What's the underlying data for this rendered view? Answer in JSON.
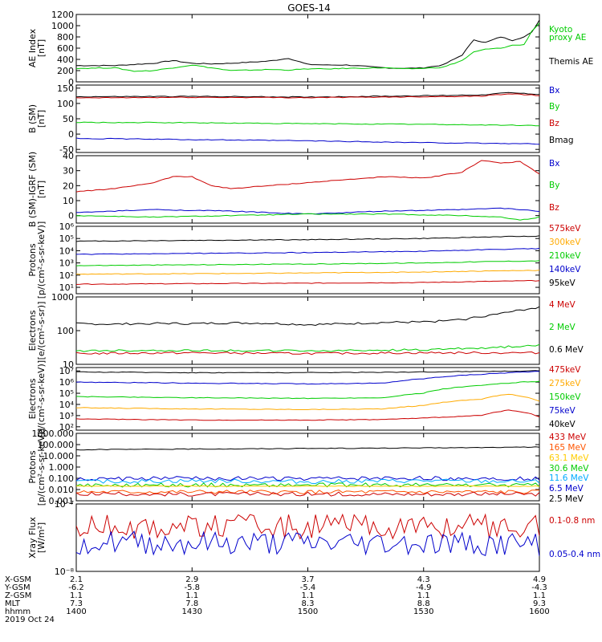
{
  "title": "GOES-14",
  "time_axis": {
    "rows": [
      {
        "label": "X-GSM",
        "values": [
          "2.1",
          "2.9",
          "3.7",
          "4.3",
          "4.9"
        ]
      },
      {
        "label": "Y-GSM",
        "values": [
          "-6.2",
          "-5.8",
          "-5.4",
          "-4.9",
          "-4.3"
        ]
      },
      {
        "label": "Z-GSM",
        "values": [
          "1.1",
          "1.1",
          "1.1",
          "1.1",
          "1.1"
        ]
      },
      {
        "label": "MLT",
        "values": [
          "7.3",
          "7.8",
          "8.3",
          "8.8",
          "9.3"
        ]
      },
      {
        "label": "hhmm",
        "values": [
          "1400",
          "1430",
          "1500",
          "1530",
          "1600"
        ]
      }
    ],
    "date": "2019 Oct 24"
  },
  "chart_data": [
    {
      "type": "line",
      "ylabel": [
        "AE Index",
        "[nT]"
      ],
      "yscale": "linear",
      "ylim": [
        0,
        1200
      ],
      "yticks": [
        "0",
        "200",
        "400",
        "600",
        "800",
        "1000",
        "1200"
      ],
      "legend": [
        {
          "text": "Kyoto",
          "color": "#00cc00"
        },
        {
          "text": "proxy AE",
          "color": "#00cc00"
        },
        {
          "text": "Themis AE",
          "color": "#000000"
        }
      ],
      "series": [
        {
          "name": "Themis AE",
          "color": "#000000",
          "x": [
            1400,
            1410,
            1420,
            1425,
            1430,
            1435,
            1440,
            1450,
            1455,
            1500,
            1505,
            1510,
            1520,
            1525,
            1530,
            1535,
            1540,
            1543,
            1546,
            1550,
            1553,
            1556,
            1558,
            1600
          ],
          "values": [
            290,
            290,
            330,
            380,
            330,
            320,
            330,
            370,
            420,
            310,
            300,
            300,
            250,
            240,
            250,
            300,
            480,
            750,
            700,
            800,
            740,
            800,
            880,
            1100
          ]
        },
        {
          "name": "Kyoto proxy AE",
          "color": "#00cc00",
          "x": [
            1400,
            1410,
            1415,
            1420,
            1425,
            1430,
            1435,
            1440,
            1450,
            1455,
            1500,
            1505,
            1510,
            1520,
            1525,
            1530,
            1535,
            1540,
            1543,
            1546,
            1550,
            1553,
            1556,
            1558,
            1600
          ],
          "values": [
            240,
            250,
            190,
            200,
            250,
            300,
            250,
            200,
            220,
            210,
            230,
            230,
            240,
            250,
            230,
            240,
            260,
            380,
            530,
            580,
            600,
            650,
            660,
            900,
            1050
          ]
        }
      ]
    },
    {
      "type": "line",
      "ylabel": [
        "B (SM)",
        "[nT]"
      ],
      "yscale": "linear",
      "ylim": [
        -60,
        160
      ],
      "yticks": [
        "-50",
        "0",
        "50",
        "100",
        "150"
      ],
      "legend": [
        {
          "text": "Bx",
          "color": "#0000cc"
        },
        {
          "text": "By",
          "color": "#00cc00"
        },
        {
          "text": "Bz",
          "color": "#cc0000"
        },
        {
          "text": "Bmag",
          "color": "#000000"
        }
      ],
      "series": [
        {
          "name": "Bmag",
          "color": "#000000",
          "x": [
            1400,
            1430,
            1500,
            1530,
            1545,
            1552,
            1600
          ],
          "values": [
            122,
            123,
            121,
            125,
            128,
            135,
            130
          ]
        },
        {
          "name": "Bz",
          "color": "#cc0000",
          "x": [
            1400,
            1430,
            1500,
            1530,
            1545,
            1552,
            1600
          ],
          "values": [
            118,
            120,
            119,
            122,
            124,
            132,
            126
          ]
        },
        {
          "name": "By",
          "color": "#00cc00",
          "x": [
            1400,
            1430,
            1500,
            1530,
            1600
          ],
          "values": [
            38,
            37,
            34,
            32,
            28
          ]
        },
        {
          "name": "Bx",
          "color": "#0000cc",
          "x": [
            1400,
            1430,
            1500,
            1530,
            1600
          ],
          "values": [
            -14,
            -18,
            -22,
            -28,
            -32
          ]
        }
      ]
    },
    {
      "type": "line",
      "ylabel": [
        "B (SM)-IGRF (SM)",
        "[nT]"
      ],
      "yscale": "linear",
      "ylim": [
        -5,
        40
      ],
      "yticks": [
        "0",
        "10",
        "20",
        "30",
        "40"
      ],
      "legend": [
        {
          "text": "Bx",
          "color": "#0000cc"
        },
        {
          "text": "By",
          "color": "#00cc00"
        },
        {
          "text": "Bz",
          "color": "#cc0000"
        }
      ],
      "series": [
        {
          "name": "Bz",
          "color": "#cc0000",
          "x": [
            1400,
            1410,
            1420,
            1425,
            1430,
            1435,
            1440,
            1450,
            1500,
            1510,
            1520,
            1530,
            1540,
            1545,
            1550,
            1555,
            1600
          ],
          "values": [
            16,
            18,
            22,
            26,
            26,
            20,
            18,
            20,
            22,
            24,
            26,
            25,
            29,
            37,
            35,
            36,
            28
          ]
        },
        {
          "name": "Bx",
          "color": "#0000cc",
          "x": [
            1400,
            1420,
            1440,
            1500,
            1520,
            1540,
            1550,
            1555,
            1600
          ],
          "values": [
            2,
            4,
            3,
            1,
            3,
            4,
            5,
            4,
            3
          ]
        },
        {
          "name": "By",
          "color": "#00cc00",
          "x": [
            1400,
            1420,
            1440,
            1500,
            1520,
            1540,
            1550,
            1555,
            1600
          ],
          "values": [
            0,
            -1,
            0,
            1,
            1,
            0,
            -1,
            -3,
            -1
          ]
        }
      ]
    },
    {
      "type": "line",
      "ylabel": [
        "Protons",
        "[p/(cm²-s-sr-keV)]"
      ],
      "yscale": "log",
      "ylim": [
        3,
        1000000
      ],
      "yticks": [
        "10¹",
        "10²",
        "10³",
        "10⁴",
        "10⁵",
        "10⁶"
      ],
      "legend": [
        {
          "text": "575keV",
          "color": "#cc0000"
        },
        {
          "text": "300keV",
          "color": "#ffaa00"
        },
        {
          "text": "210keV",
          "color": "#00cc00"
        },
        {
          "text": "140keV",
          "color": "#0000cc"
        },
        {
          "text": "95keV",
          "color": "#000000"
        }
      ],
      "series": [
        {
          "name": "95keV",
          "color": "#000000",
          "x": [
            1400,
            1430,
            1500,
            1530,
            1600
          ],
          "values": [
            60000,
            70000,
            80000,
            100000,
            160000
          ]
        },
        {
          "name": "140keV",
          "color": "#0000cc",
          "x": [
            1400,
            1430,
            1500,
            1530,
            1600
          ],
          "values": [
            5000,
            6000,
            7000,
            9000,
            15000
          ]
        },
        {
          "name": "210keV",
          "color": "#00cc00",
          "x": [
            1400,
            1430,
            1500,
            1530,
            1600
          ],
          "values": [
            600,
            700,
            800,
            1000,
            1500
          ]
        },
        {
          "name": "300keV",
          "color": "#ffaa00",
          "x": [
            1400,
            1430,
            1500,
            1530,
            1600
          ],
          "values": [
            120,
            130,
            150,
            180,
            250
          ]
        },
        {
          "name": "575keV",
          "color": "#cc0000",
          "x": [
            1400,
            1430,
            1500,
            1530,
            1600
          ],
          "values": [
            18,
            20,
            22,
            25,
            35
          ]
        }
      ]
    },
    {
      "type": "line",
      "ylabel": [
        "Electrons",
        "[e/(cm²-s-sr)]"
      ],
      "yscale": "log",
      "ylim": [
        10,
        1000
      ],
      "yticks": [
        "10",
        "100",
        "1000"
      ],
      "legend": [
        {
          "text": "4 MeV",
          "color": "#cc0000"
        },
        {
          "text": "2 MeV",
          "color": "#00cc00"
        },
        {
          "text": "0.6 MeV",
          "color": "#000000"
        }
      ],
      "series": [
        {
          "name": "0.6 MeV",
          "color": "#000000",
          "x": [
            1400,
            1410,
            1420,
            1430,
            1440,
            1450,
            1500,
            1510,
            1520,
            1530,
            1540,
            1550,
            1555,
            1600
          ],
          "values": [
            160,
            155,
            165,
            160,
            170,
            165,
            150,
            160,
            175,
            180,
            210,
            320,
            400,
            500
          ]
        },
        {
          "name": "2 MeV",
          "color": "#00cc00",
          "x": [
            1400,
            1430,
            1500,
            1530,
            1550,
            1600
          ],
          "values": [
            25,
            26,
            25,
            27,
            32,
            38
          ]
        },
        {
          "name": "4 MeV",
          "color": "#cc0000",
          "x": [
            1400,
            1430,
            1500,
            1530,
            1600
          ],
          "values": [
            21,
            22,
            21,
            22,
            22
          ]
        }
      ]
    },
    {
      "type": "line",
      "ylabel": [
        "Electrons",
        "[e/(cm²-s-sr-keV)]"
      ],
      "yscale": "log",
      "ylim": [
        50,
        20000000
      ],
      "yticks": [
        "10²",
        "10³",
        "10⁴",
        "10⁵",
        "10⁶",
        "10⁷"
      ],
      "legend": [
        {
          "text": "475keV",
          "color": "#cc0000"
        },
        {
          "text": "275keV",
          "color": "#ffaa00"
        },
        {
          "text": "150keV",
          "color": "#00cc00"
        },
        {
          "text": "75keV",
          "color": "#0000cc"
        },
        {
          "text": "40keV",
          "color": "#000000"
        }
      ],
      "series": [
        {
          "name": "40keV",
          "color": "#000000",
          "x": [
            1400,
            1430,
            1500,
            1530,
            1600
          ],
          "values": [
            8000000,
            7000000,
            7000000,
            8000000,
            10000000
          ]
        },
        {
          "name": "75keV",
          "color": "#0000cc",
          "x": [
            1400,
            1430,
            1500,
            1520,
            1530,
            1545,
            1600
          ],
          "values": [
            1000000,
            800000,
            700000,
            800000,
            2000000,
            5000000,
            9000000
          ]
        },
        {
          "name": "150keV",
          "color": "#00cc00",
          "x": [
            1400,
            1430,
            1500,
            1520,
            1530,
            1545,
            1600
          ],
          "values": [
            50000,
            40000,
            35000,
            40000,
            100000,
            500000,
            1200000
          ]
        },
        {
          "name": "275keV",
          "color": "#ffaa00",
          "x": [
            1400,
            1430,
            1500,
            1520,
            1530,
            1545,
            1552,
            1600
          ],
          "values": [
            5000,
            4000,
            3500,
            4000,
            8000,
            30000,
            80000,
            20000
          ]
        },
        {
          "name": "475keV",
          "color": "#cc0000",
          "x": [
            1400,
            1430,
            1500,
            1520,
            1530,
            1545,
            1552,
            1600
          ],
          "values": [
            500,
            400,
            400,
            450,
            600,
            1000,
            3000,
            800
          ]
        }
      ]
    },
    {
      "type": "line",
      "ylabel": [
        "Protons",
        "[p/(cm²-s-sr-keV)]"
      ],
      "yscale": "log",
      "ylim": [
        0.001,
        1000
      ],
      "yticks": [
        "0.001",
        "0.010",
        "0.100",
        "1.000",
        "10.000",
        "100.000",
        "1000.000"
      ],
      "legend": [
        {
          "text": "433 MeV",
          "color": "#cc0000"
        },
        {
          "text": "165 MeV",
          "color": "#ff5500"
        },
        {
          "text": "63.1 MeV",
          "color": "#ffcc00"
        },
        {
          "text": "30.6 MeV",
          "color": "#00cc00"
        },
        {
          "text": "11.6 MeV",
          "color": "#00aaff"
        },
        {
          "text": "6.5 MeV",
          "color": "#0000cc"
        },
        {
          "text": "2.5 MeV",
          "color": "#000000"
        }
      ],
      "series": [
        {
          "name": "2.5 MeV",
          "color": "#000000",
          "x": [
            1400,
            1430,
            1500,
            1530,
            1600
          ],
          "values": [
            35,
            40,
            45,
            50,
            60
          ]
        },
        {
          "name": "6.5 MeV",
          "color": "#0000cc",
          "x": [
            1400,
            1430,
            1500,
            1530,
            1600
          ],
          "values": [
            0.08,
            0.1,
            0.09,
            0.1,
            0.09
          ],
          "noisy": true
        },
        {
          "name": "11.6 MeV",
          "color": "#00aaff",
          "x": [
            1400,
            1430,
            1500,
            1530,
            1600
          ],
          "values": [
            0.05,
            0.06,
            0.05,
            0.06,
            0.05
          ],
          "noisy": true
        },
        {
          "name": "30.6 MeV",
          "color": "#00cc00",
          "x": [
            1400,
            1430,
            1500,
            1530,
            1600
          ],
          "values": [
            0.025,
            0.025,
            0.025,
            0.025,
            0.025
          ],
          "noisy": true
        },
        {
          "name": "63.1 MeV",
          "color": "#ffcc00",
          "x": [
            1400,
            1430,
            1500,
            1530,
            1600
          ],
          "values": [
            0.02,
            0.02,
            0.02,
            0.02,
            0.02
          ]
        },
        {
          "name": "165 MeV",
          "color": "#ff5500",
          "x": [
            1400,
            1430,
            1500,
            1530,
            1600
          ],
          "values": [
            0.006,
            0.006,
            0.006,
            0.006,
            0.006
          ],
          "noisy": true
        },
        {
          "name": "433 MeV",
          "color": "#cc0000",
          "x": [
            1400,
            1430,
            1500,
            1530,
            1600
          ],
          "values": [
            0.004,
            0.004,
            0.004,
            0.004,
            0.004
          ],
          "noisy": true
        }
      ]
    },
    {
      "type": "line",
      "ylabel": [
        "Xray Flux",
        "[W/m²]"
      ],
      "yscale": "log",
      "ylim": [
        1e-08,
        1e-07
      ],
      "yticks": [
        "10⁻⁸",
        "10⁻⁷"
      ],
      "legend": [
        {
          "text": "0.1-0.8 nm",
          "color": "#cc0000"
        },
        {
          "text": "0.05-0.4 nm",
          "color": "#0000cc"
        }
      ],
      "series": [
        {
          "name": "0.1-0.8 nm",
          "color": "#cc0000",
          "x": [
            1400,
            1430,
            1500,
            1530,
            1600
          ],
          "values": [
            4.5e-08,
            4.7e-08,
            4.6e-08,
            4.6e-08,
            4.7e-08
          ],
          "noisy": true
        },
        {
          "name": "0.05-0.4 nm",
          "color": "#0000cc",
          "x": [
            1400,
            1430,
            1500,
            1530,
            1600
          ],
          "values": [
            2.7e-08,
            2.6e-08,
            2.6e-08,
            2.6e-08,
            2.5e-08
          ],
          "noisy": true
        }
      ]
    }
  ]
}
